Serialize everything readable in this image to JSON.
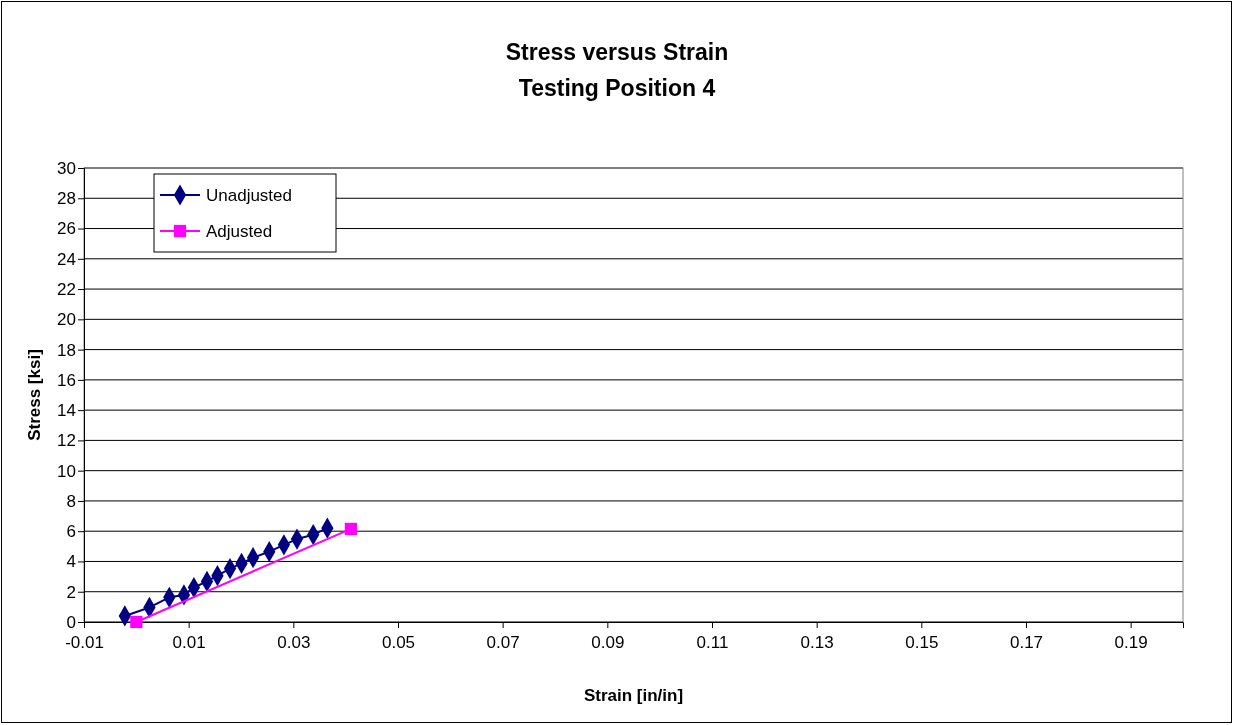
{
  "chart_data": {
    "type": "line",
    "title": "Stress versus Strain",
    "subtitle": "Testing Position 4",
    "xlabel": "Strain [in/in]",
    "ylabel": "Stress [ksi]",
    "xlim": [
      -0.01,
      0.2
    ],
    "xticks": [
      -0.01,
      0.01,
      0.03,
      0.05,
      0.07,
      0.09,
      0.11,
      0.13,
      0.15,
      0.17,
      0.19
    ],
    "ylim": [
      0,
      30
    ],
    "yticks": [
      0,
      2,
      4,
      6,
      8,
      10,
      12,
      14,
      16,
      18,
      20,
      22,
      24,
      26,
      28,
      30
    ],
    "grid": "y",
    "legend": "top left",
    "series": [
      {
        "name": "Unadjusted",
        "color": "#000080",
        "marker": "diamond",
        "x": [
          -0.0022,
          0.0025,
          0.0063,
          0.0091,
          0.011,
          0.0135,
          0.0155,
          0.0179,
          0.0201,
          0.0223,
          0.0254,
          0.0282,
          0.0307,
          0.0338,
          0.0365
        ],
        "values": [
          0.4,
          0.96,
          1.63,
          1.79,
          2.28,
          2.68,
          3.06,
          3.53,
          3.87,
          4.25,
          4.65,
          5.1,
          5.48,
          5.77,
          6.2
        ]
      },
      {
        "name": "Adjusted",
        "color": "#ff00ff",
        "marker": "square",
        "x": [
          0,
          0.041
        ],
        "values": [
          0,
          6.15
        ]
      }
    ]
  }
}
